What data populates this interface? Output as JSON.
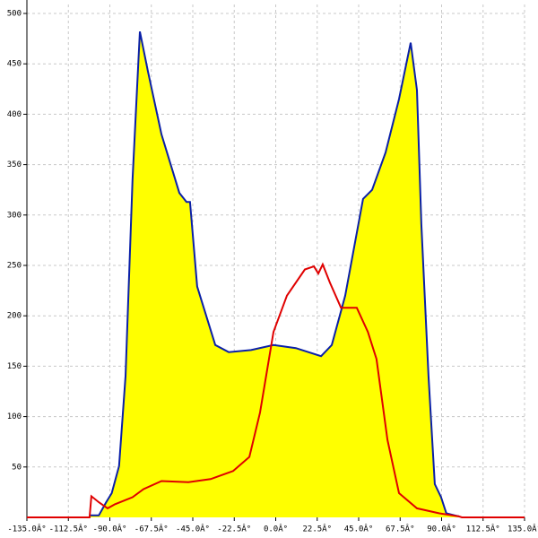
{
  "chart_data": {
    "type": "area",
    "xlim": [
      -135,
      135
    ],
    "ylim": [
      0,
      500
    ],
    "xticks": [
      {
        "value": -135,
        "label": "-135.0Â°"
      },
      {
        "value": -112.5,
        "label": "-112.5Â°"
      },
      {
        "value": -90,
        "label": "-90.0Â°"
      },
      {
        "value": -67.5,
        "label": "-67.5Â°"
      },
      {
        "value": -45,
        "label": "-45.0Â°"
      },
      {
        "value": -22.5,
        "label": "-22.5Â°"
      },
      {
        "value": 0,
        "label": "0.0Â°"
      },
      {
        "value": 22.5,
        "label": "22.5Â°"
      },
      {
        "value": 45,
        "label": "45.0Â°"
      },
      {
        "value": 67.5,
        "label": "67.5Â°"
      },
      {
        "value": 90,
        "label": "90.0Â°"
      },
      {
        "value": 112.5,
        "label": "112.5Â°"
      },
      {
        "value": 135,
        "label": "135.0Â°"
      }
    ],
    "yticks": [
      50,
      100,
      150,
      200,
      250,
      300,
      350,
      400,
      450,
      500
    ],
    "grid": true,
    "series": [
      {
        "color": "#0a1fa8",
        "fill": "#ffff00",
        "x": [
          -101,
          -96,
          -92,
          -89,
          -85,
          -81.5,
          -77.7,
          -73.7,
          -69.3,
          -62,
          -52.3,
          -48.4,
          -46.5,
          -42.6,
          -32.8,
          -25.5,
          -13.4,
          -1.2,
          10.9,
          24.6,
          30.4,
          37.7,
          47.4,
          52.3,
          59.6,
          66.9,
          73.2,
          76.6,
          79,
          82.9,
          86.3,
          89.7,
          92.6,
          99.4
        ],
        "values": [
          2,
          2,
          15,
          24,
          51,
          140,
          335,
          482,
          442,
          380,
          322,
          313,
          313,
          229,
          171,
          164,
          166,
          171,
          168,
          160,
          171,
          220,
          316,
          325,
          362,
          415,
          471,
          424,
          291,
          140,
          33,
          20,
          4,
          1
        ]
      },
      {
        "color": "#e00000",
        "x": [
          -135,
          -101,
          -100,
          -96,
          -91.2,
          -87.3,
          -77.7,
          -71.7,
          -62,
          -47.4,
          -35.3,
          -23.1,
          -14.3,
          -8.5,
          -1.2,
          6.1,
          15.8,
          20.7,
          23.1,
          25.5,
          29.4,
          35.4,
          44,
          50,
          54.7,
          60.6,
          66.9,
          76.6,
          88.8,
          99.4,
          101,
          135
        ],
        "values": [
          0,
          0,
          21,
          15,
          9,
          13,
          20,
          28,
          36,
          35,
          38,
          46,
          60,
          104,
          184,
          220,
          246,
          249,
          242,
          251,
          233,
          208,
          208,
          184,
          157,
          77,
          24,
          9,
          4,
          1,
          0,
          0
        ]
      }
    ]
  }
}
